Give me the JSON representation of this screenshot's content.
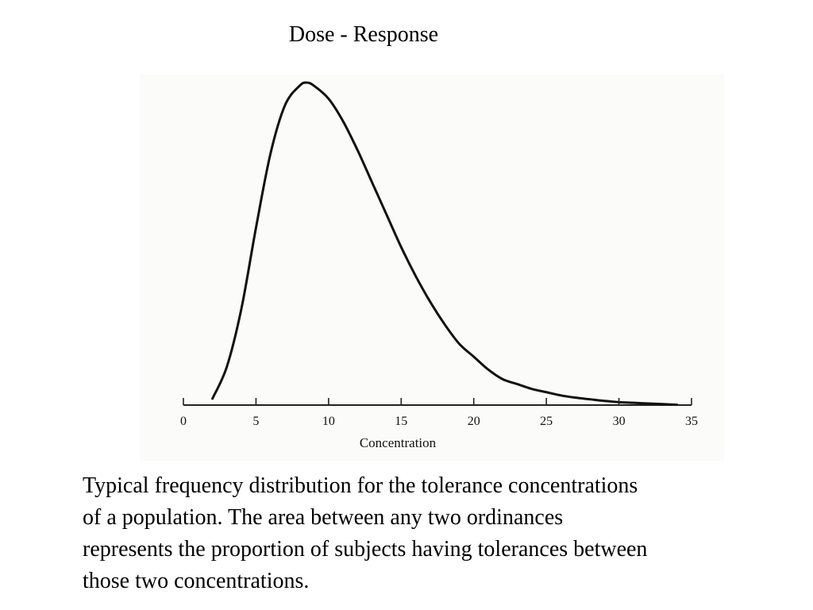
{
  "slide": {
    "title": "Dose - Response",
    "caption_lines": [
      "Typical frequency distribution for the tolerance concentrations",
      "of a population.  The area between any two ordinances",
      "represents the proportion of subjects having tolerances between",
      "those two concentrations."
    ]
  },
  "chart_data": {
    "type": "line",
    "title": "",
    "xlabel": "Concentration",
    "ylabel": "",
    "xlim": [
      0,
      35
    ],
    "ylim": [
      0,
      1
    ],
    "xticks": [
      0,
      5,
      10,
      15,
      20,
      25,
      30,
      35
    ],
    "grid": false,
    "series": [
      {
        "x": [
          2,
          3,
          4,
          5,
          6,
          7,
          8,
          8.5,
          9,
          10,
          11,
          12,
          13,
          14,
          15,
          16,
          17,
          18,
          19,
          20,
          21,
          22,
          23,
          24,
          25,
          26,
          27,
          28,
          29,
          30,
          31,
          32,
          33,
          34
        ],
        "y": [
          0.02,
          0.12,
          0.3,
          0.55,
          0.78,
          0.93,
          0.99,
          1.0,
          0.99,
          0.95,
          0.88,
          0.79,
          0.69,
          0.59,
          0.49,
          0.4,
          0.32,
          0.25,
          0.19,
          0.15,
          0.11,
          0.08,
          0.065,
          0.05,
          0.04,
          0.03,
          0.023,
          0.018,
          0.013,
          0.009,
          0.007,
          0.005,
          0.003,
          0.001
        ]
      }
    ],
    "colors": {
      "curve": "#111111",
      "axis": "#222222",
      "panel_background": "#fbfbf9"
    }
  }
}
